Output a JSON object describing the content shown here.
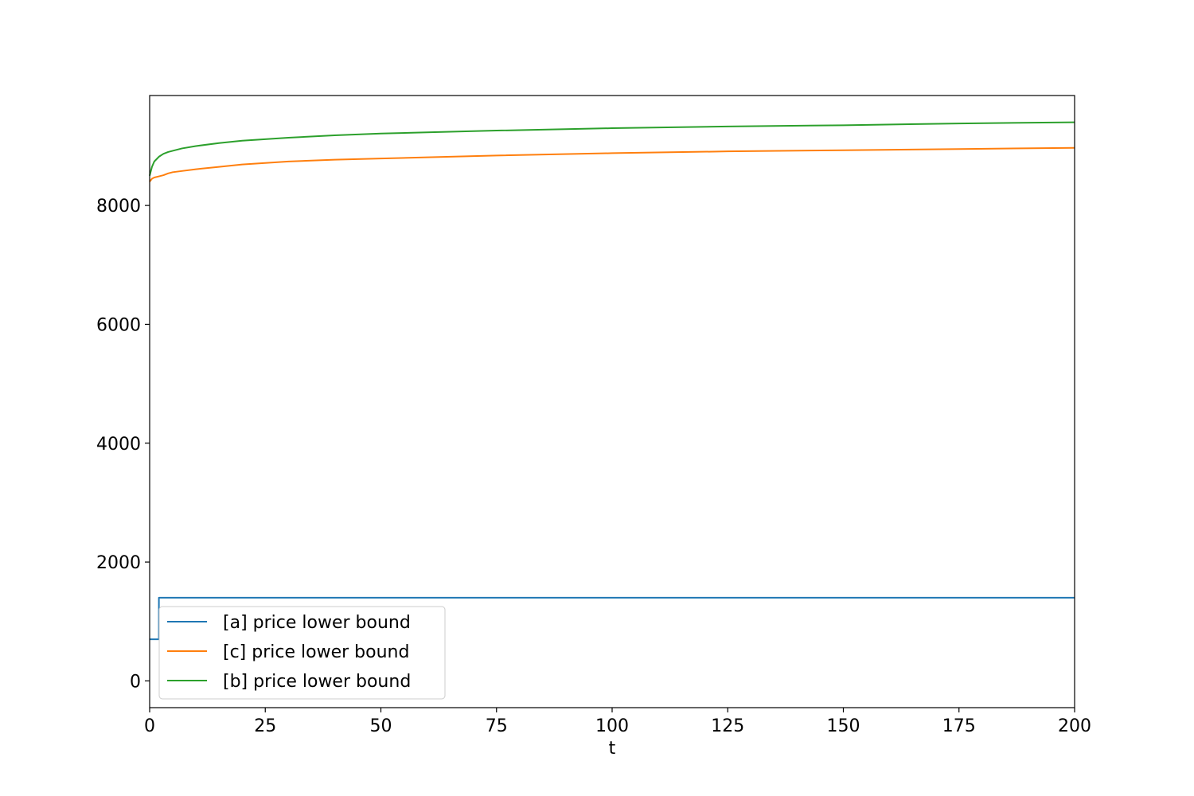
{
  "chart_data": {
    "type": "line",
    "title": "",
    "xlabel": "t",
    "ylabel": "",
    "xlim": [
      0,
      200
    ],
    "ylim": [
      -450,
      9850
    ],
    "xticks": [
      0,
      25,
      50,
      75,
      100,
      125,
      150,
      175,
      200
    ],
    "yticks": [
      0,
      2000,
      4000,
      6000,
      8000
    ],
    "grid": false,
    "legend": "lower-left",
    "series": [
      {
        "name": "[a] price lower bound",
        "color": "#1f77b4",
        "points": [
          [
            0,
            700
          ],
          [
            2,
            700
          ],
          [
            2,
            1400
          ],
          [
            200,
            1400
          ]
        ]
      },
      {
        "name": "[c] price lower bound",
        "color": "#ff7f0e",
        "points": [
          [
            0,
            8400
          ],
          [
            0.5,
            8450
          ],
          [
            1,
            8470
          ],
          [
            2,
            8490
          ],
          [
            3,
            8510
          ],
          [
            4,
            8540
          ],
          [
            5,
            8560
          ],
          [
            7,
            8580
          ],
          [
            10,
            8610
          ],
          [
            15,
            8650
          ],
          [
            20,
            8690
          ],
          [
            30,
            8740
          ],
          [
            40,
            8770
          ],
          [
            50,
            8790
          ],
          [
            60,
            8810
          ],
          [
            75,
            8840
          ],
          [
            100,
            8880
          ],
          [
            125,
            8910
          ],
          [
            150,
            8930
          ],
          [
            175,
            8950
          ],
          [
            200,
            8970
          ]
        ]
      },
      {
        "name": "[b] price lower bound",
        "color": "#2ca02c",
        "points": [
          [
            0,
            8500
          ],
          [
            0.5,
            8650
          ],
          [
            1,
            8740
          ],
          [
            2,
            8820
          ],
          [
            3,
            8870
          ],
          [
            4,
            8900
          ],
          [
            5,
            8920
          ],
          [
            7,
            8960
          ],
          [
            10,
            9000
          ],
          [
            15,
            9050
          ],
          [
            20,
            9090
          ],
          [
            30,
            9140
          ],
          [
            40,
            9180
          ],
          [
            50,
            9210
          ],
          [
            60,
            9230
          ],
          [
            75,
            9260
          ],
          [
            100,
            9300
          ],
          [
            125,
            9330
          ],
          [
            150,
            9350
          ],
          [
            175,
            9380
          ],
          [
            200,
            9400
          ]
        ]
      }
    ]
  }
}
